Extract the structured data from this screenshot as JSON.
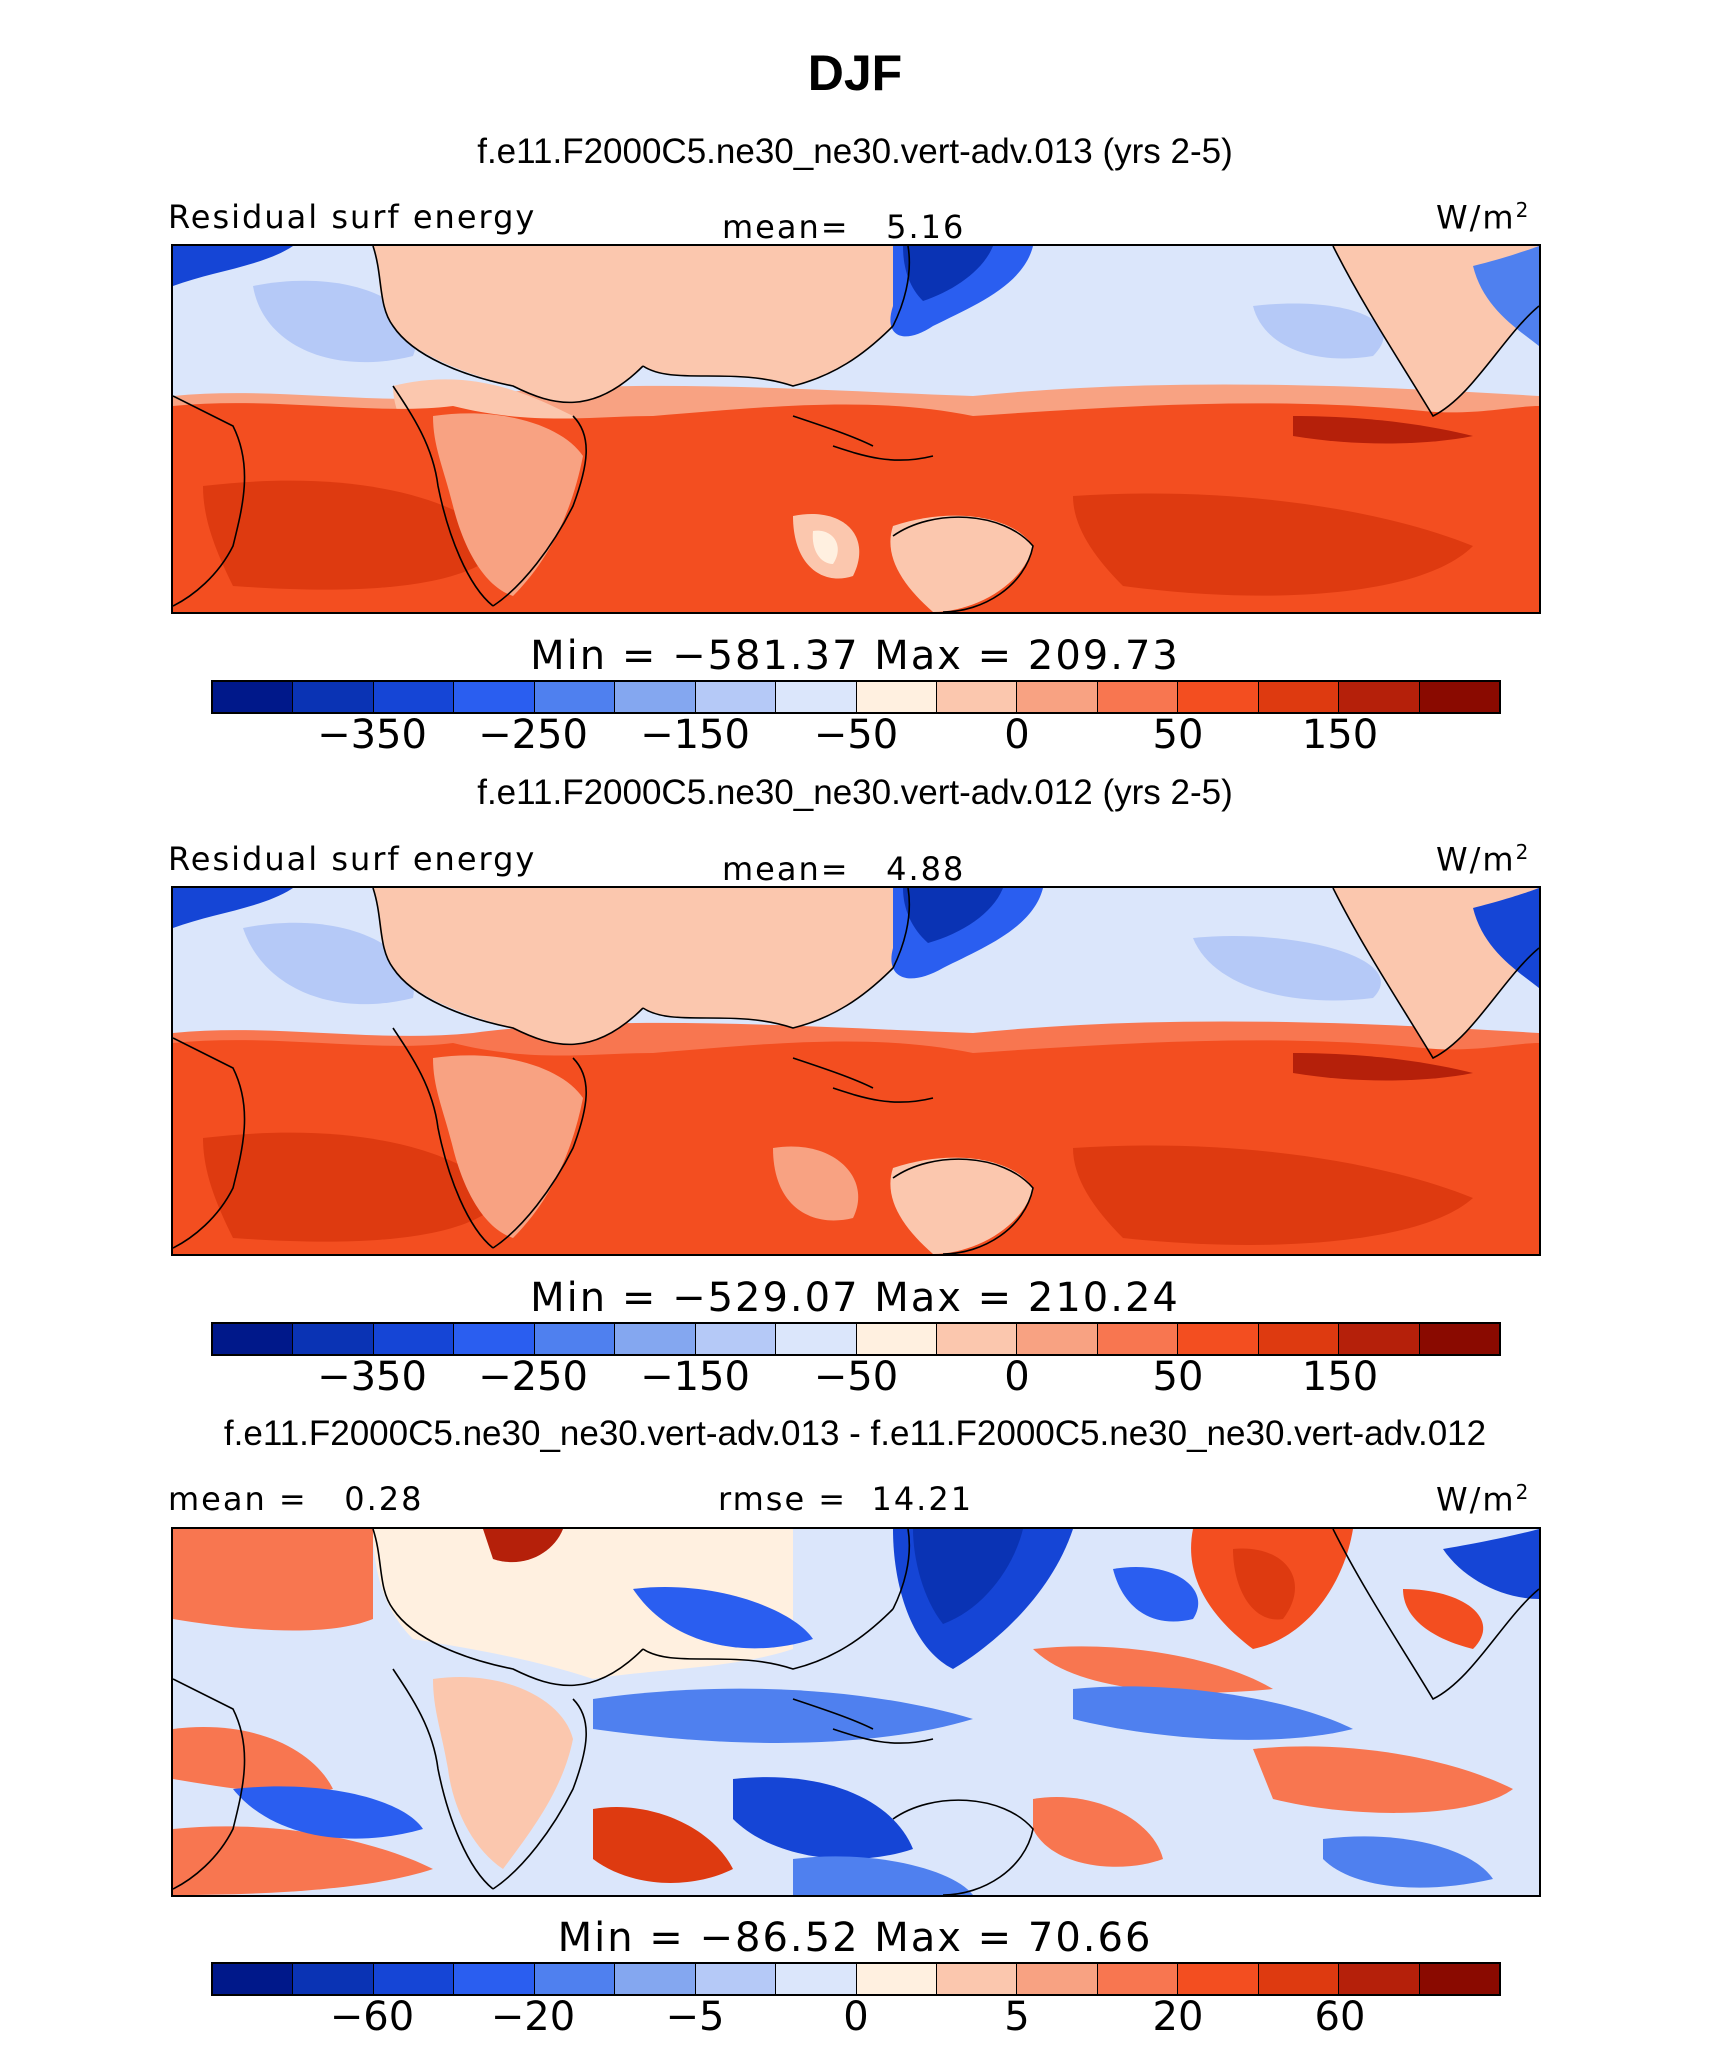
{
  "title": "DJF",
  "colors": {
    "bin1": "#00188a",
    "bin2": "#0a33b4",
    "bin3": "#1545d6",
    "bin4": "#2a5ef0",
    "bin5": "#4f80ef",
    "bin6": "#84a7f0",
    "bin7": "#b5c9f7",
    "bin8": "#dbe6fb",
    "bin9": "#fff0e0",
    "bin10": "#fbc7ae",
    "bin11": "#f8a282",
    "bin12": "#f87650",
    "bin13": "#f34e20",
    "bin14": "#de3a10",
    "bin15": "#b5200a",
    "bin16": "#8a0a00"
  },
  "panels": [
    {
      "case_title": "f.e11.F2000C5.ne30_ne30.vert-adv.013 (yrs 2-5)",
      "left_label": "Residual surf energy",
      "center_label": "mean=   5.16",
      "units": "W/m",
      "units_sup": "2",
      "minmax": "Min = −581.37 Max = 209.73",
      "colorbar_ticks": [
        "−350",
        "−250",
        "−150",
        "−50",
        "0",
        "50",
        "150"
      ]
    },
    {
      "case_title": "f.e11.F2000C5.ne30_ne30.vert-adv.012 (yrs 2-5)",
      "left_label": "Residual surf energy",
      "center_label": "mean=   4.88",
      "units": "W/m",
      "units_sup": "2",
      "minmax": "Min = −529.07 Max = 210.24",
      "colorbar_ticks": [
        "−350",
        "−250",
        "−150",
        "−50",
        "0",
        "50",
        "150"
      ]
    },
    {
      "case_title": "f.e11.F2000C5.ne30_ne30.vert-adv.013 - f.e11.F2000C5.ne30_ne30.vert-adv.012",
      "left_label": "mean =   0.28",
      "center_label": "rmse =  14.21",
      "units": "W/m",
      "units_sup": "2",
      "minmax": "Min = −86.52 Max =  70.66",
      "colorbar_ticks": [
        "−60",
        "−20",
        "−5",
        "0",
        "5",
        "20",
        "60"
      ]
    }
  ]
}
